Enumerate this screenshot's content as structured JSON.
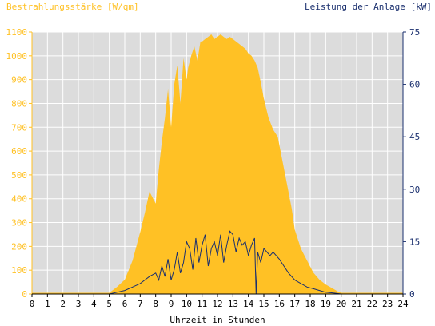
{
  "chart_data": {
    "type": "area",
    "left_axis_title": "Bestrahlungsstärke [W/qm]",
    "right_axis_title": "Leistung der Anlage [kW]",
    "xlabel": "Uhrzeit in Stunden",
    "xlim": [
      0,
      24
    ],
    "ylim_left": [
      0,
      1100
    ],
    "ylim_right": [
      0,
      75
    ],
    "x_ticks": [
      "0",
      "1",
      "2",
      "3",
      "4",
      "5",
      "6",
      "7",
      "8",
      "9",
      "10",
      "11",
      "12",
      "13",
      "14",
      "15",
      "16",
      "17",
      "18",
      "19",
      "20",
      "21",
      "22",
      "23",
      "24"
    ],
    "left_ticks": [
      "0",
      "100",
      "200",
      "300",
      "400",
      "500",
      "600",
      "700",
      "800",
      "900",
      "1000",
      "1100"
    ],
    "right_ticks": [
      "0",
      "15",
      "30",
      "45",
      "60",
      "75"
    ],
    "grid": true,
    "colors": {
      "irradiance": "#ffc125",
      "power": "#1a2f6e",
      "plot_bg": "#dcdcdc"
    },
    "series": [
      {
        "axis": "left",
        "x": [
          5.0,
          5.5,
          6.0,
          6.5,
          7.0,
          7.3,
          7.6,
          8.0,
          8.2,
          8.4,
          8.6,
          8.8,
          9.0,
          9.2,
          9.4,
          9.6,
          9.8,
          10.0,
          10.1,
          10.3,
          10.5,
          10.7,
          10.9,
          11.0,
          11.2,
          11.4,
          11.6,
          11.8,
          12.0,
          12.2,
          12.4,
          12.6,
          12.8,
          13.0,
          13.2,
          13.4,
          13.6,
          13.8,
          14.0,
          14.2,
          14.4,
          14.6,
          14.8,
          15.0,
          15.3,
          15.6,
          15.9,
          16.2,
          16.5,
          16.8,
          17.0,
          17.4,
          17.8,
          18.2,
          18.6,
          19.0,
          19.4,
          19.8,
          20.0,
          20.4,
          21.0
        ],
        "values": [
          5,
          30,
          60,
          140,
          260,
          340,
          430,
          380,
          520,
          640,
          740,
          860,
          700,
          880,
          960,
          800,
          990,
          900,
          950,
          1000,
          1040,
          980,
          1060,
          1060,
          1070,
          1080,
          1090,
          1070,
          1080,
          1090,
          1080,
          1070,
          1080,
          1070,
          1060,
          1050,
          1040,
          1030,
          1010,
          1000,
          980,
          950,
          890,
          820,
          740,
          690,
          660,
          560,
          460,
          360,
          270,
          190,
          140,
          90,
          60,
          40,
          25,
          10,
          5,
          2,
          0
        ]
      },
      {
        "axis": "right",
        "x": [
          5.0,
          5.5,
          6.0,
          6.5,
          7.0,
          7.3,
          7.6,
          8.0,
          8.2,
          8.4,
          8.6,
          8.8,
          9.0,
          9.2,
          9.4,
          9.6,
          9.8,
          10.0,
          10.2,
          10.4,
          10.6,
          10.8,
          11.0,
          11.2,
          11.4,
          11.6,
          11.8,
          12.0,
          12.2,
          12.4,
          12.6,
          12.8,
          13.0,
          13.2,
          13.4,
          13.6,
          13.8,
          14.0,
          14.2,
          14.4,
          14.5,
          14.6,
          14.8,
          15.0,
          15.2,
          15.4,
          15.6,
          15.8,
          16.0,
          16.3,
          16.6,
          17.0,
          17.4,
          17.8,
          18.2,
          18.6,
          19.0,
          19.5,
          20.0,
          20.5
        ],
        "values": [
          0,
          0.5,
          1,
          2,
          3,
          4,
          5,
          6,
          4,
          8,
          5,
          10,
          4,
          7,
          12,
          6,
          9,
          15,
          13,
          7,
          16,
          9,
          14,
          17,
          8,
          13,
          15,
          11,
          17,
          9,
          14,
          18,
          17,
          12,
          16,
          14,
          15,
          11,
          14,
          16,
          0,
          12,
          9,
          13,
          12,
          11,
          12,
          11,
          10,
          8,
          6,
          4,
          3,
          2,
          1.5,
          1,
          0.5,
          0.3,
          0,
          0
        ]
      }
    ]
  }
}
